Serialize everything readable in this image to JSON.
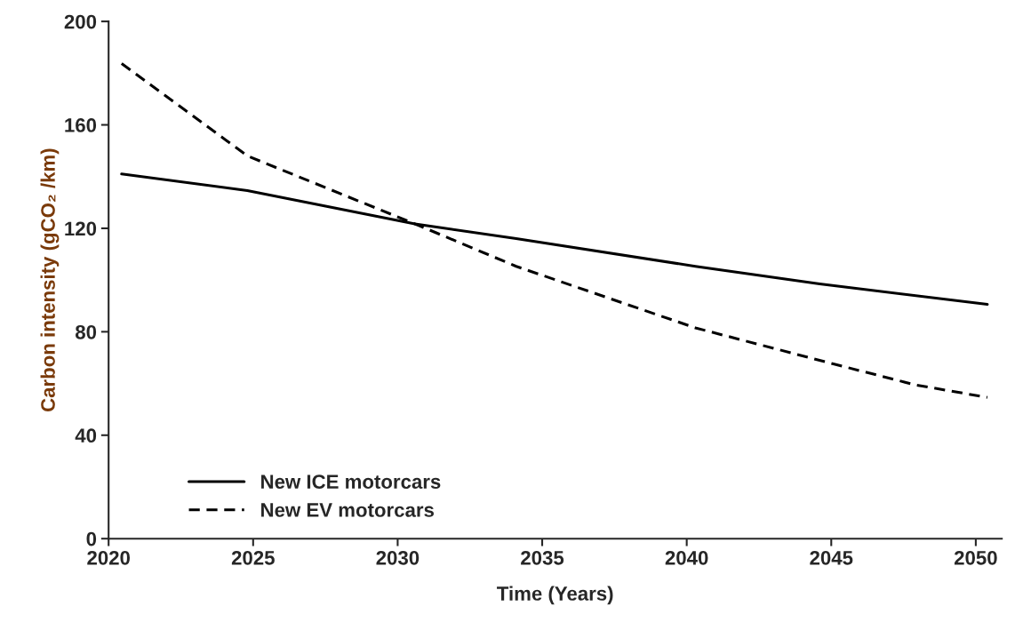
{
  "chart_data": {
    "type": "line",
    "xlabel": "Time (Years)",
    "ylabel": "Carbon intensity (gCO₂ /km)",
    "xlim": [
      2020,
      2050.9
    ],
    "xticks": [
      2020,
      2025,
      2030,
      2035,
      2040,
      2045,
      2050
    ],
    "ylim": [
      0,
      200
    ],
    "yticks": [
      0,
      40,
      80,
      120,
      160,
      200
    ],
    "grid": false,
    "legend": "bottom left",
    "series": [
      {
        "name": "New ICE motorcars",
        "color": "#000000",
        "line_style": "solid",
        "x": [
          2020.45,
          2024.8,
          2030.6,
          2034.1,
          2040.3,
          2044.6,
          2050.4
        ],
        "values": [
          141,
          134.6,
          121.7,
          116,
          105.3,
          98.5,
          90.6
        ]
      },
      {
        "name": "New EV motorcars",
        "color": "#000000",
        "line_style": "dashed",
        "x": [
          2020.45,
          2024.8,
          2030.6,
          2034.1,
          2040.3,
          2045.1,
          2047.9,
          2050.4
        ],
        "values": [
          183.7,
          148,
          121.7,
          105.3,
          81.5,
          67.5,
          59.5,
          54.6
        ]
      }
    ]
  }
}
